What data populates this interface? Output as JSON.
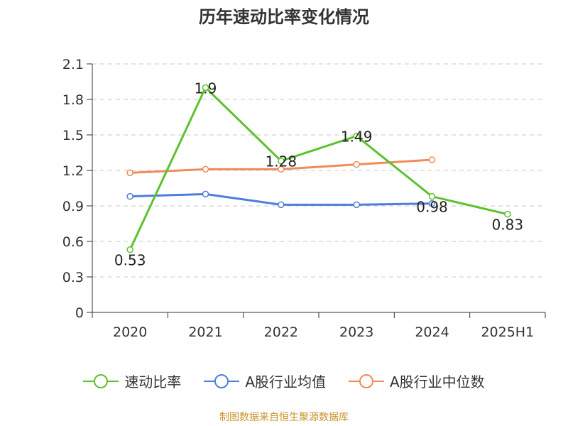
{
  "title": "历年速动比率变化情况",
  "source": "制图数据来自恒生聚源数据库",
  "chart_data": {
    "type": "line",
    "categories": [
      "2020",
      "2021",
      "2022",
      "2023",
      "2024",
      "2025H1"
    ],
    "y_ticks": [
      "0",
      "0.3",
      "0.6",
      "0.9",
      "1.2",
      "1.5",
      "1.8",
      "2.1"
    ],
    "ylim": [
      0,
      2.1
    ],
    "grid": true,
    "legend_position": "bottom",
    "series": [
      {
        "name": "速动比率",
        "color": "#5cc22d",
        "values": [
          0.53,
          1.9,
          1.28,
          1.49,
          0.98,
          0.83
        ],
        "labels": [
          "0.53",
          "1.9",
          "1.28",
          "1.49",
          "0.98",
          "0.83"
        ]
      },
      {
        "name": "A股行业均值",
        "color": "#4f7ddb",
        "values": [
          0.98,
          1.0,
          0.91,
          0.91,
          0.92,
          null
        ]
      },
      {
        "name": "A股行业中位数",
        "color": "#f08b5a",
        "values": [
          1.18,
          1.21,
          1.21,
          1.25,
          1.29,
          null
        ]
      }
    ]
  }
}
